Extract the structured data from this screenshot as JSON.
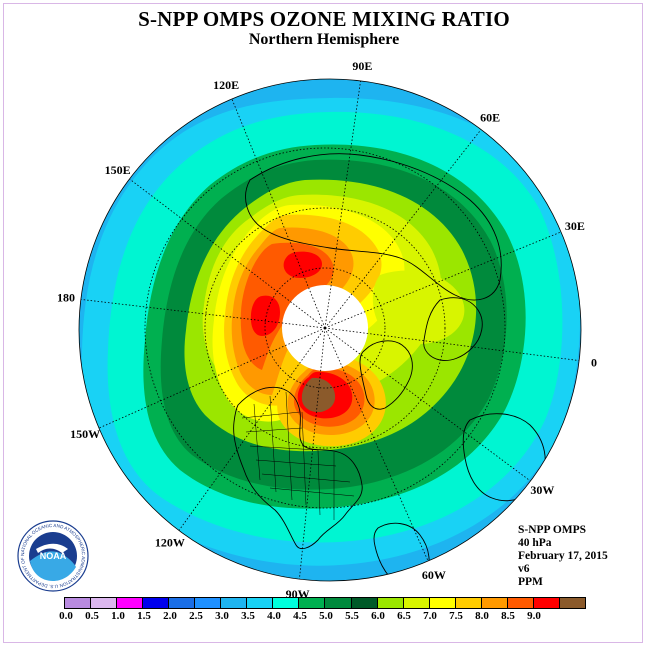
{
  "header": {
    "title": "S-NPP OMPS OZONE MIXING RATIO",
    "subtitle": "Northern Hemisphere"
  },
  "info": {
    "lines": [
      "S-NPP OMPS",
      "40 hPa",
      "February 17, 2015",
      "v6",
      "PPM"
    ]
  },
  "longitude_labels": [
    {
      "text": "90E",
      "deg": 90
    },
    {
      "text": "60E",
      "deg": 60
    },
    {
      "text": "30E",
      "deg": 30
    },
    {
      "text": "0",
      "deg": 0
    },
    {
      "text": "30W",
      "deg": -30
    },
    {
      "text": "60W",
      "deg": -60
    },
    {
      "text": "90W",
      "deg": -90
    },
    {
      "text": "120W",
      "deg": -120
    },
    {
      "text": "150W",
      "deg": -150
    },
    {
      "text": "180",
      "deg": 180
    },
    {
      "text": "150E",
      "deg": 150
    },
    {
      "text": "120E",
      "deg": 120
    }
  ],
  "colorbar": {
    "ticks": [
      "0.0",
      "0.5",
      "1.0",
      "1.5",
      "2.0",
      "2.5",
      "3.0",
      "3.5",
      "4.0",
      "4.5",
      "5.0",
      "5.5",
      "6.0",
      "6.5",
      "7.0",
      "7.5",
      "8.0",
      "8.5",
      "9.0"
    ],
    "colors": [
      "#b98be0",
      "#dcb7ef",
      "#ff00ff",
      "#0000ee",
      "#1a6ee6",
      "#1e90ff",
      "#1eb4f0",
      "#19d2f5",
      "#00ffdd",
      "#00b050",
      "#008a3c",
      "#005a28",
      "#9be600",
      "#d8f500",
      "#ffff00",
      "#ffcc00",
      "#ff9900",
      "#ff5a00",
      "#ff0000",
      "#8b5a2b"
    ]
  },
  "logo": {
    "name": "noaa-logo",
    "text": "NOAA",
    "ring_text": "NATIONAL OCEANIC AND ATMOSPHERIC ADMINISTRATION U.S. DEPARTMENT OF COMMERCE"
  },
  "map": {
    "projection": "north-polar-stereographic",
    "field_levels_ppm": [
      3.0,
      3.5,
      4.0,
      4.5,
      5.0,
      5.5,
      6.0,
      6.5,
      7.0,
      7.5,
      8.0,
      8.5,
      9.0
    ],
    "polar_night_mask": "white"
  }
}
